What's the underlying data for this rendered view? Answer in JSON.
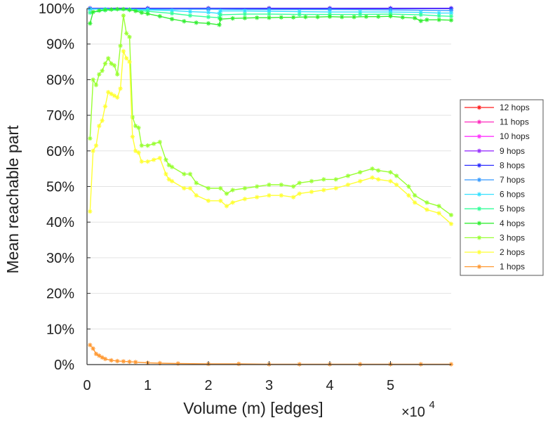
{
  "chart_data": {
    "type": "line",
    "xlabel": "Volume (m) [edges]",
    "ylabel": "Mean reachable part",
    "xlim": [
      0,
      60000
    ],
    "ylim": [
      0,
      100
    ],
    "x_ticks": [
      0,
      1,
      2,
      3,
      4,
      5
    ],
    "x_tick_labels": [
      "0",
      "1",
      "2",
      "3",
      "4",
      "5"
    ],
    "x_exponent": {
      "base": "×10",
      "power": "4"
    },
    "y_ticks": [
      0,
      10,
      20,
      30,
      40,
      50,
      60,
      70,
      80,
      90,
      100
    ],
    "y_tick_labels": [
      "0%",
      "10%",
      "20%",
      "30%",
      "40%",
      "50%",
      "60%",
      "70%",
      "80%",
      "90%",
      "100%"
    ],
    "grid": true,
    "legend_position": "right",
    "marker": "asterisk",
    "series": [
      {
        "name": "12 hops",
        "color": "#ff1a1a",
        "x": [
          500,
          10000,
          20000,
          30000,
          40000,
          50000,
          60000
        ],
        "y": [
          100,
          100,
          100,
          100,
          100,
          100,
          100
        ]
      },
      {
        "name": "11 hops",
        "color": "#ff2bbf",
        "x": [
          500,
          10000,
          20000,
          30000,
          40000,
          50000,
          60000
        ],
        "y": [
          100,
          100,
          100,
          100,
          100,
          100,
          100
        ]
      },
      {
        "name": "10 hops",
        "color": "#ff33ff",
        "x": [
          500,
          10000,
          20000,
          30000,
          40000,
          50000,
          60000
        ],
        "y": [
          100,
          100,
          100,
          100,
          100,
          100,
          100
        ]
      },
      {
        "name": "9 hops",
        "color": "#9933ff",
        "x": [
          500,
          10000,
          20000,
          30000,
          40000,
          50000,
          60000
        ],
        "y": [
          100,
          100,
          100,
          100,
          100,
          100,
          100
        ]
      },
      {
        "name": "8 hops",
        "color": "#2b2bff",
        "x": [
          500,
          10000,
          20000,
          30000,
          40000,
          50000,
          60000
        ],
        "y": [
          100,
          100,
          100,
          100,
          100,
          100,
          100
        ]
      },
      {
        "name": "7 hops",
        "color": "#3399ff",
        "x": [
          500,
          10000,
          20000,
          30000,
          40000,
          50000,
          60000
        ],
        "y": [
          99.9,
          99.8,
          99.8,
          99.7,
          99.7,
          99.6,
          99.4
        ]
      },
      {
        "name": "6 hops",
        "color": "#33e0ff",
        "x": [
          500,
          3000,
          7000,
          10000,
          14000,
          17000,
          20000,
          21800,
          22000,
          26000,
          30000,
          35000,
          40000,
          45000,
          50000,
          55000,
          58000,
          60000
        ],
        "y": [
          99.8,
          99.8,
          99.7,
          99.6,
          99.4,
          99.1,
          98.9,
          98.6,
          99.3,
          99.3,
          99.2,
          99.1,
          99.0,
          99.0,
          99.0,
          98.9,
          98.7,
          98.7
        ]
      },
      {
        "name": "5 hops",
        "color": "#33ff99",
        "x": [
          500,
          3000,
          7000,
          10000,
          14000,
          17000,
          20000,
          21800,
          22000,
          26000,
          30000,
          35000,
          40000,
          45000,
          50000,
          55000,
          58000,
          60000
        ],
        "y": [
          98.8,
          99.5,
          99.6,
          99.2,
          98.6,
          98.0,
          97.6,
          97.4,
          98.2,
          98.4,
          98.4,
          98.3,
          98.3,
          98.3,
          98.4,
          98.2,
          97.9,
          97.8
        ]
      },
      {
        "name": "4 hops",
        "color": "#33ee33",
        "x": [
          500,
          1000,
          2000,
          3000,
          4000,
          5000,
          6000,
          7000,
          8000,
          9000,
          10000,
          12000,
          14000,
          16000,
          18000,
          20000,
          21800,
          22000,
          24000,
          26000,
          28000,
          30000,
          32000,
          34000,
          36000,
          38000,
          40000,
          42000,
          44000,
          46000,
          48000,
          50000,
          52000,
          54000,
          55000,
          56000,
          58000,
          60000
        ],
        "y": [
          95.8,
          99.0,
          99.4,
          99.6,
          99.7,
          99.8,
          99.8,
          99.6,
          99.3,
          98.8,
          98.5,
          97.8,
          97.0,
          96.4,
          96.0,
          95.8,
          95.4,
          97.0,
          97.2,
          97.3,
          97.4,
          97.4,
          97.5,
          97.5,
          97.6,
          97.6,
          97.7,
          97.6,
          97.6,
          97.7,
          97.7,
          97.8,
          97.5,
          97.3,
          96.5,
          96.8,
          96.8,
          96.7
        ]
      },
      {
        "name": "3 hops",
        "color": "#99ff33",
        "x": [
          500,
          1000,
          1500,
          2000,
          2500,
          3000,
          3500,
          4000,
          4500,
          5000,
          5500,
          6000,
          6500,
          7000,
          7500,
          8000,
          8500,
          9000,
          10000,
          11000,
          12000,
          13000,
          13500,
          14000,
          16000,
          17000,
          18000,
          20000,
          22000,
          23000,
          24000,
          26000,
          28000,
          30000,
          32000,
          34000,
          35000,
          37000,
          39000,
          41000,
          43000,
          45000,
          47000,
          48000,
          50000,
          51000,
          53000,
          54000,
          56000,
          58000,
          60000
        ],
        "y": [
          63.5,
          80,
          78.5,
          81.5,
          82.5,
          84.5,
          86,
          84.5,
          84,
          81.5,
          89.5,
          98,
          93,
          92,
          69.5,
          67,
          66.5,
          61.5,
          61.5,
          62,
          62.5,
          57.5,
          56,
          55.5,
          53.5,
          53.5,
          51,
          49.5,
          49.5,
          48,
          49,
          49.5,
          50,
          50.5,
          50.5,
          50,
          51,
          51.5,
          52,
          52,
          53,
          54,
          55,
          54.5,
          54,
          53,
          50,
          47.5,
          45.5,
          44.5,
          42
        ]
      },
      {
        "name": "2 hops",
        "color": "#ffff33",
        "x": [
          500,
          1000,
          1500,
          2000,
          2500,
          3000,
          3500,
          4000,
          4500,
          5000,
          5500,
          6000,
          6500,
          7000,
          7500,
          8000,
          8500,
          9000,
          10000,
          11000,
          12000,
          13000,
          13500,
          14000,
          16000,
          17000,
          18000,
          20000,
          22000,
          23000,
          24000,
          26000,
          28000,
          30000,
          32000,
          34000,
          35000,
          37000,
          39000,
          41000,
          43000,
          45000,
          47000,
          48000,
          50000,
          51000,
          53000,
          54000,
          56000,
          58000,
          60000
        ],
        "y": [
          43,
          60,
          61.5,
          67,
          68.5,
          72.5,
          76.5,
          76,
          75.5,
          75,
          77.5,
          88,
          86,
          85,
          64,
          60,
          59.5,
          57,
          57,
          57.5,
          58,
          53.5,
          52,
          51.5,
          49.5,
          49.5,
          47.5,
          46,
          46,
          44.5,
          45.5,
          46.5,
          47,
          47.5,
          47.5,
          47,
          48,
          48.5,
          49,
          49.5,
          50.5,
          51.5,
          52.5,
          52,
          51.5,
          50.5,
          47.5,
          45.5,
          43.5,
          42.5,
          39.5
        ]
      },
      {
        "name": "1 hops",
        "color": "#ff9933",
        "x": [
          500,
          1000,
          1500,
          2000,
          2500,
          3000,
          4000,
          5000,
          6000,
          7000,
          8000,
          10000,
          12000,
          15000,
          20000,
          25000,
          30000,
          35000,
          40000,
          45000,
          50000,
          55000,
          60000
        ],
        "y": [
          5.5,
          4.5,
          3,
          2.5,
          2.0,
          1.6,
          1.2,
          1.0,
          0.9,
          0.8,
          0.7,
          0.5,
          0.4,
          0.3,
          0.2,
          0.2,
          0.1,
          0.1,
          0.1,
          0.1,
          0.1,
          0.1,
          0.1
        ]
      }
    ]
  }
}
